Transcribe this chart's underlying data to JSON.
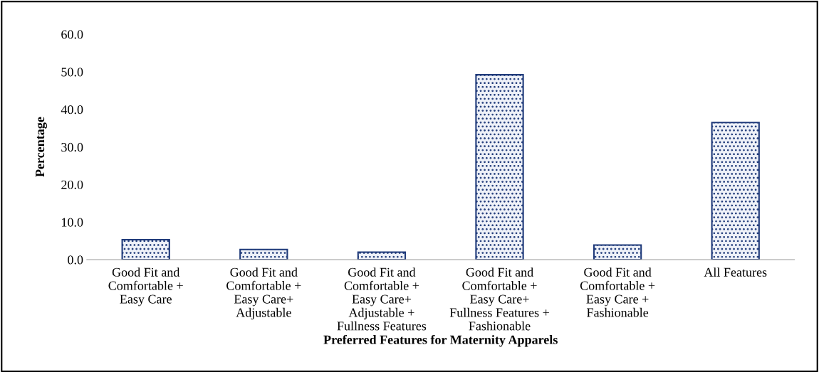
{
  "chart_data": {
    "type": "bar",
    "xlabel": "Preferred Features for Maternity Apparels",
    "ylabel": "Percentage",
    "categories": [
      "Good Fit and\nComfortable +\nEasy Care",
      "Good Fit and\nComfortable +\nEasy Care+\nAdjustable",
      "Good Fit and\nComfortable +\nEasy Care+\nAdjustable +\nFullness Features",
      "Good Fit and\nComfortable +\nEasy Care+\nFullness Features +\nFashionable",
      "Good Fit and\nComfortable +\nEasy Care +\nFashionable",
      "All Features"
    ],
    "values": [
      5.3,
      2.7,
      2.0,
      49.2,
      3.9,
      36.5
    ],
    "color": "#1f3a7a",
    "ylim": [
      0,
      60
    ],
    "yticks": [
      {
        "value": 0,
        "label": "0.0"
      },
      {
        "value": 10,
        "label": "10.0"
      },
      {
        "value": 20,
        "label": "20.0"
      },
      {
        "value": 30,
        "label": "30.0"
      },
      {
        "value": 40,
        "label": "40.0"
      },
      {
        "value": 50,
        "label": "50.0"
      },
      {
        "value": 60,
        "label": "60.0"
      }
    ],
    "grid": false
  }
}
